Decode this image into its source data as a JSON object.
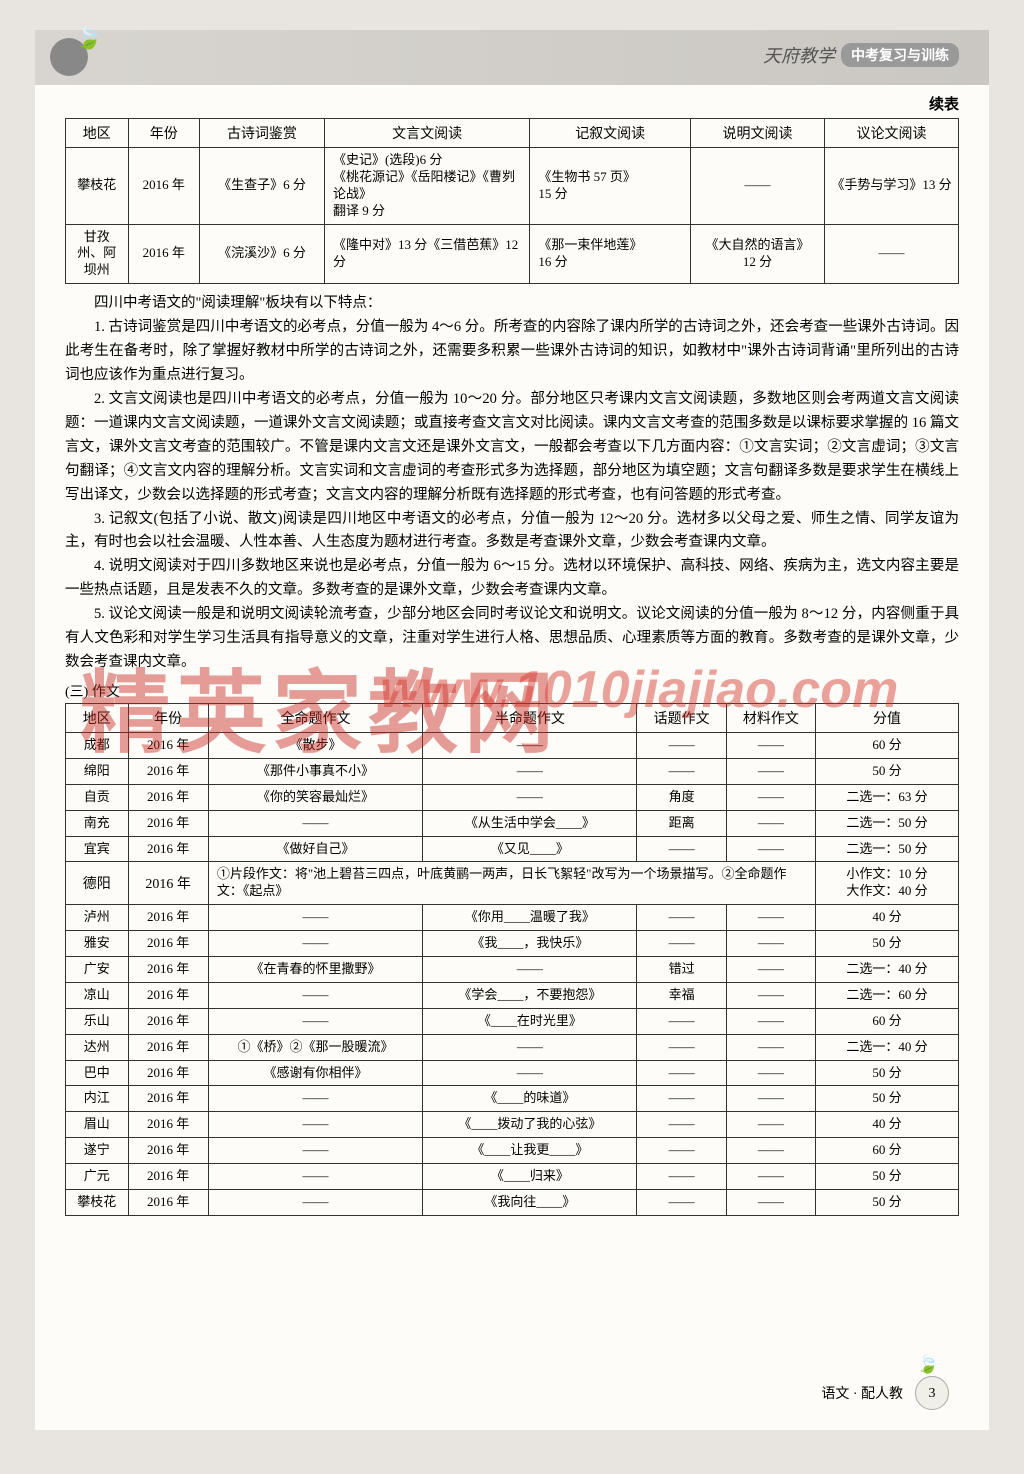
{
  "header": {
    "brand_prefix": "天府教学",
    "brand_badge": "中考复习与训练",
    "continued": "续表"
  },
  "table1": {
    "headers": [
      "地区",
      "年份",
      "古诗词鉴赏",
      "文言文阅读",
      "记叙文阅读",
      "说明文阅读",
      "议论文阅读"
    ],
    "rows": [
      {
        "region": "攀枝花",
        "year": "2016 年",
        "poetry": "《生查子》6 分",
        "classical": "《史记》(选段)6 分\n《桃花源记》《岳阳楼记》《曹刿论战》\n翻译 9 分",
        "narrative": "《生物书 57 页》\n15 分",
        "expository": "——",
        "argumentative": "《手势与学习》13 分"
      },
      {
        "region": "甘孜州、阿坝州",
        "year": "2016 年",
        "poetry": "《浣溪沙》6 分",
        "classical": "《隆中对》13 分《三借芭蕉》12 分",
        "narrative": "《那一束伴地莲》\n16 分",
        "expository": "《大自然的语言》\n12 分",
        "argumentative": "——"
      }
    ]
  },
  "paragraphs": {
    "intro": "四川中考语文的\"阅读理解\"板块有以下特点：",
    "p1": "1. 古诗词鉴赏是四川中考语文的必考点，分值一般为 4～6 分。所考查的内容除了课内所学的古诗词之外，还会考查一些课外古诗词。因此考生在备考时，除了掌握好教材中所学的古诗词之外，还需要多积累一些课外古诗词的知识，如教材中\"课外古诗词背诵\"里所列出的古诗词也应该作为重点进行复习。",
    "p2": "2. 文言文阅读也是四川中考语文的必考点，分值一般为 10～20 分。部分地区只考课内文言文阅读题，多数地区则会考两道文言文阅读题：一道课内文言文阅读题，一道课外文言文阅读题；或直接考查文言文对比阅读。课内文言文考查的范围多数是以课标要求掌握的 16 篇文言文，课外文言文考查的范围较广。不管是课内文言文还是课外文言文，一般都会考查以下几方面内容：①文言实词；②文言虚词；③文言句翻译；④文言文内容的理解分析。文言实词和文言虚词的考查形式多为选择题，部分地区为填空题；文言句翻译多数是要求学生在横线上写出译文，少数会以选择题的形式考查；文言文内容的理解分析既有选择题的形式考查，也有问答题的形式考查。",
    "p3": "3. 记叙文(包括了小说、散文)阅读是四川地区中考语文的必考点，分值一般为 12～20 分。选材多以父母之爱、师生之情、同学友谊为主，有时也会以社会温暖、人性本善、人生态度为题材进行考查。多数是考查课外文章，少数会考查课内文章。",
    "p4": "4. 说明文阅读对于四川多数地区来说也是必考点，分值一般为 6～15 分。选材以环境保护、高科技、网络、疾病为主，选文内容主要是一些热点话题，且是发表不久的文章。多数考查的是课外文章，少数会考查课内文章。",
    "p5": "5. 议论文阅读一般是和说明文阅读轮流考查，少部分地区会同时考议论文和说明文。议论文阅读的分值一般为 8～12 分，内容侧重于具有人文色彩和对学生学习生活具有指导意义的文章，注重对学生进行人格、思想品质、心理素质等方面的教育。多数考查的是课外文章，少数会考查课内文章。"
  },
  "section3_label": "(三) 作文",
  "table2": {
    "headers": [
      "地区",
      "年份",
      "全命题作文",
      "半命题作文",
      "话题作文",
      "材料作文",
      "分值"
    ],
    "rows": [
      {
        "region": "成都",
        "year": "2016 年",
        "full": "《散步》",
        "half": "——",
        "topic": "——",
        "material": "——",
        "score": "60 分"
      },
      {
        "region": "绵阳",
        "year": "2016 年",
        "full": "《那件小事真不小》",
        "half": "——",
        "topic": "——",
        "material": "——",
        "score": "50 分"
      },
      {
        "region": "自贡",
        "year": "2016 年",
        "full": "《你的笑容最灿烂》",
        "half": "——",
        "topic": "角度",
        "material": "——",
        "score": "二选一：63 分"
      },
      {
        "region": "南充",
        "year": "2016 年",
        "full": "——",
        "half": "《从生活中学会____》",
        "topic": "距离",
        "material": "——",
        "score": "二选一：50 分"
      },
      {
        "region": "宜宾",
        "year": "2016 年",
        "full": "《做好自己》",
        "half": "《又见____》",
        "topic": "——",
        "material": "——",
        "score": "二选一：50 分"
      },
      {
        "region": "德阳",
        "year": "2016 年",
        "full": "①片段作文：将\"池上碧苔三四点，叶底黄鹂一两声，日长飞絮轻\"改写为一个场景描写。②全命题作文：《起点》",
        "half": "",
        "topic": "",
        "material": "",
        "score": "小作文：10 分\n大作文：40 分"
      },
      {
        "region": "泸州",
        "year": "2016 年",
        "full": "——",
        "half": "《你用____温暖了我》",
        "topic": "——",
        "material": "——",
        "score": "40 分"
      },
      {
        "region": "雅安",
        "year": "2016 年",
        "full": "——",
        "half": "《我____，我快乐》",
        "topic": "——",
        "material": "——",
        "score": "50 分"
      },
      {
        "region": "广安",
        "year": "2016 年",
        "full": "《在青春的怀里撒野》",
        "half": "——",
        "topic": "错过",
        "material": "——",
        "score": "二选一：40 分"
      },
      {
        "region": "凉山",
        "year": "2016 年",
        "full": "——",
        "half": "《学会____，不要抱怨》",
        "topic": "幸福",
        "material": "——",
        "score": "二选一：60 分"
      },
      {
        "region": "乐山",
        "year": "2016 年",
        "full": "——",
        "half": "《____在时光里》",
        "topic": "——",
        "material": "——",
        "score": "60 分"
      },
      {
        "region": "达州",
        "year": "2016 年",
        "full": "①《桥》②《那一股暖流》",
        "half": "——",
        "topic": "——",
        "material": "——",
        "score": "二选一：40 分"
      },
      {
        "region": "巴中",
        "year": "2016 年",
        "full": "《感谢有你相伴》",
        "half": "——",
        "topic": "——",
        "material": "——",
        "score": "50 分"
      },
      {
        "region": "内江",
        "year": "2016 年",
        "full": "——",
        "half": "《____的味道》",
        "topic": "——",
        "material": "——",
        "score": "50 分"
      },
      {
        "region": "眉山",
        "year": "2016 年",
        "full": "——",
        "half": "《____拨动了我的心弦》",
        "topic": "——",
        "material": "——",
        "score": "40 分"
      },
      {
        "region": "遂宁",
        "year": "2016 年",
        "full": "——",
        "half": "《____让我更____》",
        "topic": "——",
        "material": "——",
        "score": "60 分"
      },
      {
        "region": "广元",
        "year": "2016 年",
        "full": "——",
        "half": "《____归来》",
        "topic": "——",
        "material": "——",
        "score": "50 分"
      },
      {
        "region": "攀枝花",
        "year": "2016 年",
        "full": "——",
        "half": "《我向往____》",
        "topic": "——",
        "material": "——",
        "score": "50 分"
      }
    ]
  },
  "footer": {
    "subject": "语文 · 配人教",
    "page": "3"
  },
  "watermarks": {
    "cn": "精英家教网",
    "url": "www.1010jiajiao.com"
  },
  "layout": {
    "t1_widths": [
      "7%",
      "8%",
      "14%",
      "23%",
      "18%",
      "15%",
      "15%"
    ],
    "t2_widths": [
      "7%",
      "9%",
      "24%",
      "24%",
      "10%",
      "10%",
      "16%"
    ],
    "dash": "——"
  }
}
